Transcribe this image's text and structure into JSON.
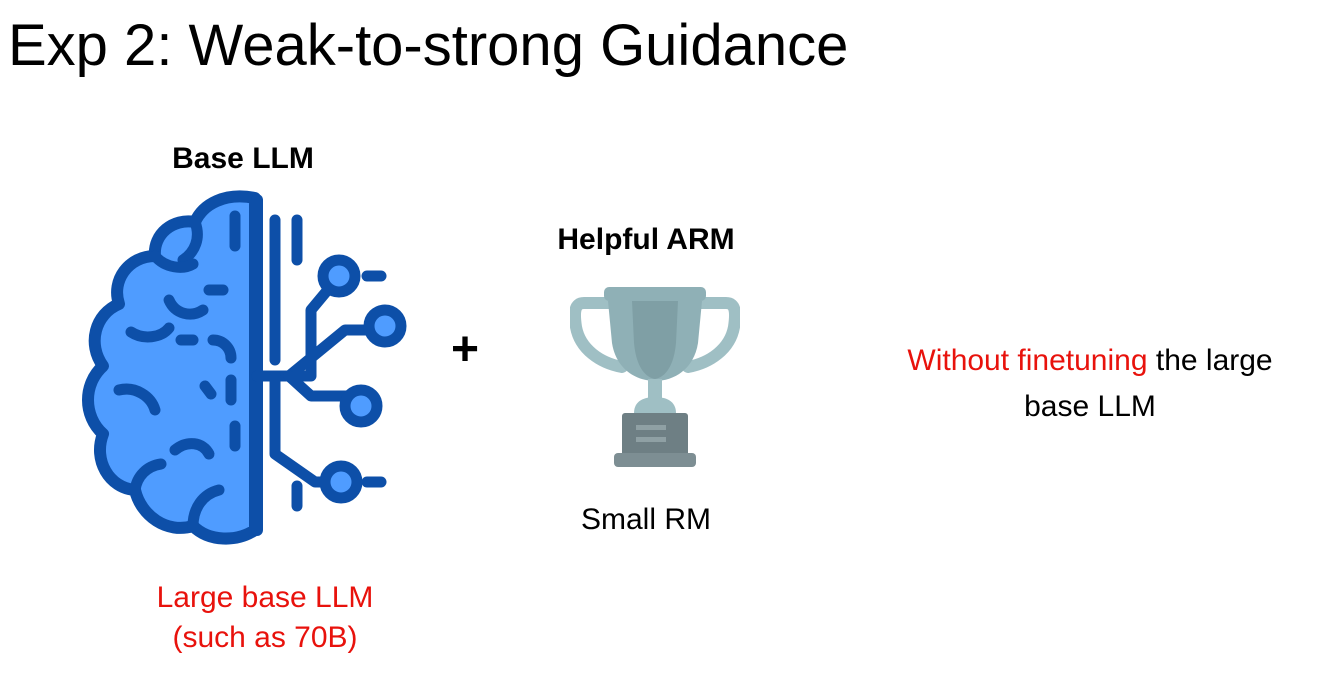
{
  "title": "Exp 2: Weak-to-strong Guidance",
  "base_llm": {
    "heading": "Base LLM",
    "icon": "brain-circuit-icon",
    "caption_line1": "Large base LLM",
    "caption_line2": "(such as 70B)"
  },
  "operator": "+",
  "arm": {
    "heading": "Helpful ARM",
    "icon": "trophy-icon",
    "caption": "Small RM"
  },
  "note": {
    "highlight": "Without finetuning",
    "rest_line1": " the large",
    "rest_line2": "base LLM"
  },
  "colors": {
    "accent_red": "#e8120c",
    "brain_fill": "#4f9cff",
    "brain_stroke": "#0d4fa8",
    "trophy_light": "#9fbfc4",
    "trophy_dark": "#6e7f84"
  }
}
